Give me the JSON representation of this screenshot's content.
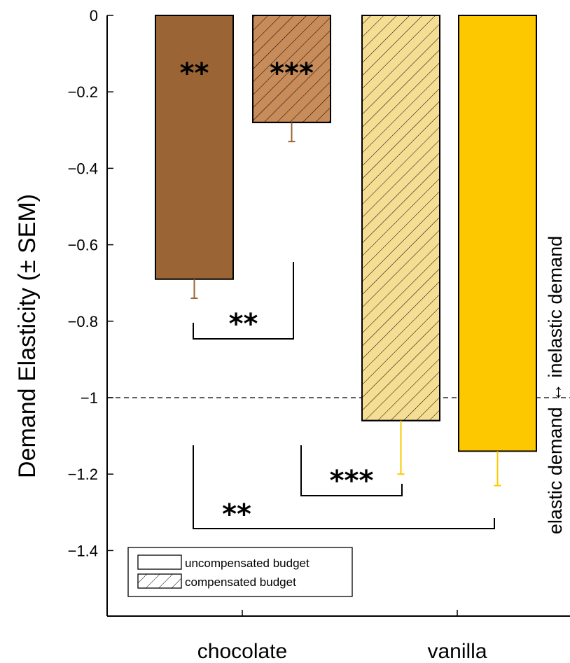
{
  "chart_data": {
    "type": "bar",
    "ylabel": "Demand Elasticity (± SEM)",
    "ylim": [
      -1.5,
      0
    ],
    "yticks": [
      "0",
      "−0.2",
      "−0.4",
      "−0.6",
      "−0.8",
      "−1",
      "−1.2",
      "−1.4"
    ],
    "categories": [
      "chocolate",
      "vanilla"
    ],
    "bars": [
      {
        "category": "chocolate",
        "budget": "uncompensated budget",
        "value": -0.69,
        "sem": 0.05,
        "color": "#9A6434",
        "hatched": false,
        "stars": "**"
      },
      {
        "category": "chocolate",
        "budget": "compensated budget",
        "value": -0.28,
        "sem": 0.05,
        "color": "#C88C5A",
        "hatched": true,
        "stars": "***"
      },
      {
        "category": "vanilla",
        "budget": "compensated budget",
        "value": -1.06,
        "sem": 0.14,
        "color": "#F5DE94",
        "hatched": true,
        "stars": ""
      },
      {
        "category": "vanilla",
        "budget": "uncompensated budget",
        "value": -1.14,
        "sem": 0.09,
        "color": "#FDC800",
        "hatched": false,
        "stars": ""
      }
    ],
    "error_colors": [
      "#9A6434",
      "#9A6434",
      "#FDC800",
      "#FDC800"
    ],
    "reference_line": {
      "value": -1,
      "style": "dashed"
    },
    "significance": [
      {
        "from_bar": 0,
        "to_bar": 1,
        "stars": "**"
      },
      {
        "from_bar": 1,
        "to_bar": 2,
        "stars": "***"
      },
      {
        "from_bar": 0,
        "to_bar": 3,
        "stars": "**"
      }
    ],
    "side_label": "elastic demand ↔ inelastic demand",
    "legend": {
      "placement": "bottom-left",
      "entries": [
        "uncompensated budget",
        "compensated budget"
      ]
    },
    "grid": false
  }
}
